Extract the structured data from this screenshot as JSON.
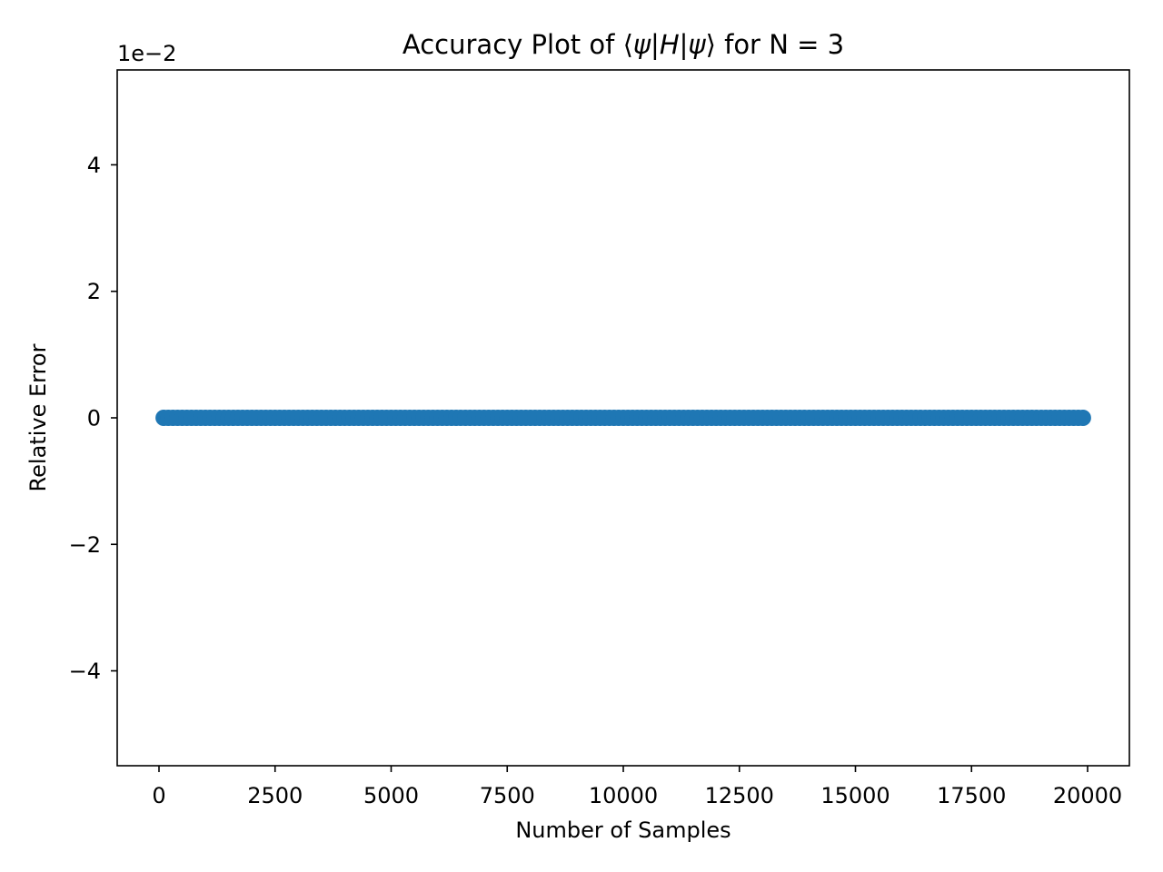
{
  "chart_data": {
    "type": "scatter",
    "title": "Accuracy Plot of ⟨ψ|H|ψ⟩ for N = 3",
    "title_parts": {
      "prefix": "Accuracy Plot of ",
      "expr_open": "⟨",
      "psi1": "ψ",
      "bar1": "|",
      "h": "H",
      "bar2": "|",
      "psi2": "ψ",
      "expr_close": "⟩",
      "suffix": " for N = 3"
    },
    "xlabel": "Number of Samples",
    "ylabel": "Relative Error",
    "y_offset_text": "1e−2",
    "xlim": [
      -900,
      20900
    ],
    "ylim": [
      -0.055,
      0.055
    ],
    "x_ticks": [
      0,
      2500,
      5000,
      7500,
      10000,
      12500,
      15000,
      17500,
      20000
    ],
    "x_tick_labels": [
      "0",
      "2500",
      "5000",
      "7500",
      "10000",
      "12500",
      "15000",
      "17500",
      "20000"
    ],
    "y_ticks": [
      -0.04,
      -0.02,
      0,
      0.02,
      0.04
    ],
    "y_tick_labels": [
      "−4",
      "−2",
      "0",
      "2",
      "4"
    ],
    "series": [
      {
        "marker_color": "#1f77b4",
        "x_start": 100,
        "x_end": 19900,
        "x_step": 100,
        "y_value": 0
      }
    ],
    "grid": false,
    "legend": "none"
  }
}
